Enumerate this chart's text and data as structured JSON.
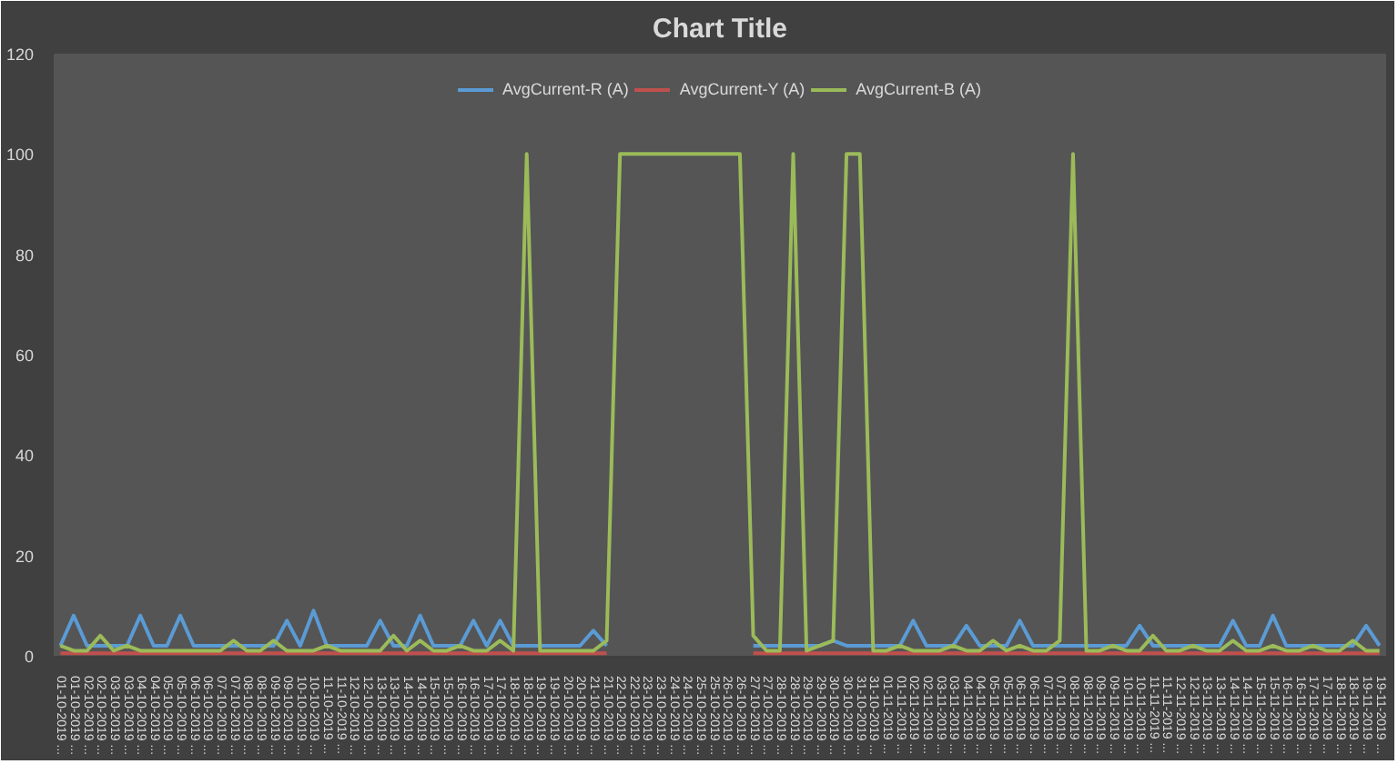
{
  "chart_data": {
    "type": "line",
    "title": "Chart Title",
    "categories": [
      "01-10-2019 ...",
      "01-10-2019 ...",
      "02-10-2019 ...",
      "02-10-2019 ...",
      "03-10-2019 ...",
      "03-10-2019 ...",
      "04-10-2019 ...",
      "04-10-2019 ...",
      "05-10-2019 ...",
      "05-10-2019 ...",
      "06-10-2019 ...",
      "06-10-2019 ...",
      "07-10-2019 ...",
      "07-10-2019 ...",
      "08-10-2019 ...",
      "08-10-2019 ...",
      "09-10-2019 ...",
      "09-10-2019 ...",
      "10-10-2019 ...",
      "10-10-2019 ...",
      "11-10-2019 ...",
      "11-10-2019 ...",
      "12-10-2019 ...",
      "12-10-2019 ...",
      "13-10-2019 ...",
      "13-10-2019 ...",
      "14-10-2019 ...",
      "14-10-2019 ...",
      "15-10-2019 ...",
      "15-10-2019 ...",
      "16-10-2019 ...",
      "16-10-2019 ...",
      "17-10-2019 ...",
      "17-10-2019 ...",
      "18-10-2019 ...",
      "18-10-2019 ...",
      "19-10-2019 ...",
      "19-10-2019 ...",
      "20-10-2019 ...",
      "20-10-2019 ...",
      "21-10-2019 ...",
      "21-10-2019 ...",
      "22-10-2019 ...",
      "22-10-2019 ...",
      "23-10-2019 ...",
      "23-10-2019 ...",
      "24-10-2019 ...",
      "24-10-2019 ...",
      "25-10-2019 ...",
      "25-10-2019 ...",
      "26-10-2019 ...",
      "26-10-2019 ...",
      "27-10-2019 ...",
      "27-10-2019 ...",
      "28-10-2019 ...",
      "28-10-2019 ...",
      "29-10-2019 ...",
      "29-10-2019 ...",
      "30-10-2019 ...",
      "30-10-2019 ...",
      "31-10-2019 ...",
      "31-10-2019 ...",
      "01-11-2019 ...",
      "01-11-2019 ...",
      "02-11-2019 ...",
      "02-11-2019 ...",
      "03-11-2019 ...",
      "03-11-2019 ...",
      "04-11-2019 ...",
      "04-11-2019 ...",
      "05-11-2019 ...",
      "05-11-2019 ...",
      "06-11-2019 ...",
      "06-11-2019 ...",
      "07-11-2019 ...",
      "07-11-2019 ...",
      "08-11-2019 ...",
      "08-11-2019 ...",
      "09-11-2019 ...",
      "09-11-2019 ...",
      "10-11-2019 ...",
      "10-11-2019 ...",
      "11-11-2019 ...",
      "11-11-2019 ...",
      "12-11-2019 ...",
      "12-11-2019 ...",
      "13-11-2019 ...",
      "13-11-2019 ...",
      "14-11-2019 ...",
      "14-11-2019 ...",
      "15-11-2019 ...",
      "15-11-2019 ...",
      "16-11-2019 ...",
      "16-11-2019 ...",
      "17-11-2019 ...",
      "17-11-2019 ...",
      "18-11-2019 ...",
      "18-11-2019 ...",
      "19-11-2019 ...",
      "19-11-2019 ..."
    ],
    "ylim": [
      0,
      120
    ],
    "yticks": [
      0,
      20,
      40,
      60,
      80,
      100,
      120
    ],
    "grid": false,
    "legend": "top",
    "marker": "none",
    "line_style": "solid",
    "series": [
      {
        "name": "AvgCurrent-R (A)",
        "color": "#5b9bd5",
        "values": [
          2,
          8,
          2,
          2,
          2,
          2,
          8,
          2,
          2,
          8,
          2,
          2,
          2,
          2,
          2,
          2,
          2,
          7,
          2,
          9,
          2,
          2,
          2,
          2,
          7,
          2,
          2,
          8,
          2,
          2,
          2,
          7,
          2,
          7,
          2,
          2,
          2,
          2,
          2,
          2,
          5,
          2,
          null,
          null,
          null,
          null,
          null,
          null,
          null,
          null,
          null,
          null,
          2,
          2,
          2,
          2,
          2,
          2,
          3,
          2,
          2,
          2,
          2,
          2,
          7,
          2,
          2,
          2,
          6,
          2,
          2,
          2,
          7,
          2,
          2,
          2,
          2,
          2,
          2,
          2,
          2,
          6,
          2,
          2,
          2,
          2,
          2,
          2,
          7,
          2,
          2,
          8,
          2,
          2,
          2,
          2,
          2,
          2,
          6,
          2
        ]
      },
      {
        "name": "AvgCurrent-Y (A)",
        "color": "#c0504d",
        "values": [
          0.5,
          0.5,
          0.5,
          0.5,
          0.5,
          0.5,
          0.5,
          0.5,
          0.5,
          0.5,
          0.5,
          0.5,
          0.5,
          0.5,
          0.5,
          0.5,
          0.5,
          0.5,
          0.5,
          0.5,
          0.5,
          0.5,
          0.5,
          0.5,
          0.5,
          0.5,
          0.5,
          0.5,
          0.5,
          0.5,
          0.5,
          0.5,
          0.5,
          0.5,
          0.5,
          0.5,
          0.5,
          0.5,
          0.5,
          0.5,
          0.5,
          0.5,
          null,
          null,
          null,
          null,
          null,
          null,
          null,
          null,
          null,
          null,
          0.5,
          0.5,
          0.5,
          0.5,
          0.5,
          0.5,
          0.5,
          0.5,
          0.5,
          0.5,
          0.5,
          0.5,
          0.5,
          0.5,
          0.5,
          0.5,
          0.5,
          0.5,
          0.5,
          0.5,
          0.5,
          0.5,
          0.5,
          0.5,
          0.5,
          0.5,
          0.5,
          0.5,
          0.5,
          0.5,
          0.5,
          0.5,
          0.5,
          0.5,
          0.5,
          0.5,
          0.5,
          0.5,
          0.5,
          0.5,
          0.5,
          0.5,
          0.5,
          0.5,
          0.5,
          0.5,
          0.5,
          0.5
        ]
      },
      {
        "name": "AvgCurrent-B (A)",
        "color": "#9bbb59",
        "values": [
          2,
          1,
          1,
          4,
          1,
          2,
          1,
          1,
          1,
          1,
          1,
          1,
          1,
          3,
          1,
          1,
          3,
          1,
          1,
          1,
          2,
          1,
          1,
          1,
          1,
          4,
          1,
          3,
          1,
          1,
          2,
          1,
          1,
          3,
          1,
          100,
          1,
          1,
          1,
          1,
          1,
          3,
          100,
          100,
          100,
          100,
          100,
          100,
          100,
          100,
          100,
          100,
          4,
          1,
          1,
          100,
          1,
          2,
          3,
          100,
          100,
          1,
          1,
          2,
          1,
          1,
          1,
          2,
          1,
          1,
          3,
          1,
          2,
          1,
          1,
          3,
          100,
          1,
          1,
          2,
          1,
          1,
          4,
          1,
          1,
          2,
          1,
          1,
          3,
          1,
          1,
          2,
          1,
          1,
          2,
          1,
          1,
          3,
          1,
          1
        ]
      }
    ]
  }
}
